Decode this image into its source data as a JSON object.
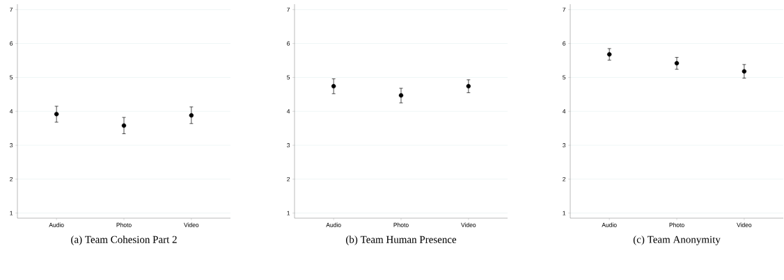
{
  "chart_data": [
    {
      "type": "scatter",
      "title": "(a) Team Cohesion Part 2",
      "categories": [
        "Audio",
        "Photo",
        "Video"
      ],
      "values": [
        3.92,
        3.58,
        3.88
      ],
      "errors": [
        [
          3.68,
          4.15
        ],
        [
          3.34,
          3.82
        ],
        [
          3.64,
          4.13
        ]
      ],
      "color": "#000000",
      "marker": "circle",
      "ylim": [
        0.85,
        7.16
      ],
      "yticks": [
        1,
        2,
        3,
        4,
        5,
        6,
        7
      ],
      "grid": "y"
    },
    {
      "type": "scatter",
      "title": "(b) Team Human Presence",
      "categories": [
        "Audio",
        "Photo",
        "Video"
      ],
      "values": [
        4.74,
        4.47,
        4.74
      ],
      "errors": [
        [
          4.52,
          4.96
        ],
        [
          4.25,
          4.68
        ],
        [
          4.55,
          4.93
        ]
      ],
      "color": "#000000",
      "marker": "circle",
      "ylim": [
        0.85,
        7.16
      ],
      "yticks": [
        1,
        2,
        3,
        4,
        5,
        6,
        7
      ],
      "grid": "y"
    },
    {
      "type": "scatter",
      "title": "(c) Team Anonymity",
      "categories": [
        "Audio",
        "Photo",
        "Video"
      ],
      "values": [
        5.68,
        5.42,
        5.18
      ],
      "errors": [
        [
          5.51,
          5.85
        ],
        [
          5.24,
          5.59
        ],
        [
          4.98,
          5.38
        ]
      ],
      "color": "#000000",
      "marker": "circle",
      "ylim": [
        0.85,
        7.16
      ],
      "yticks": [
        1,
        2,
        3,
        4,
        5,
        6,
        7
      ],
      "grid": "y"
    }
  ]
}
